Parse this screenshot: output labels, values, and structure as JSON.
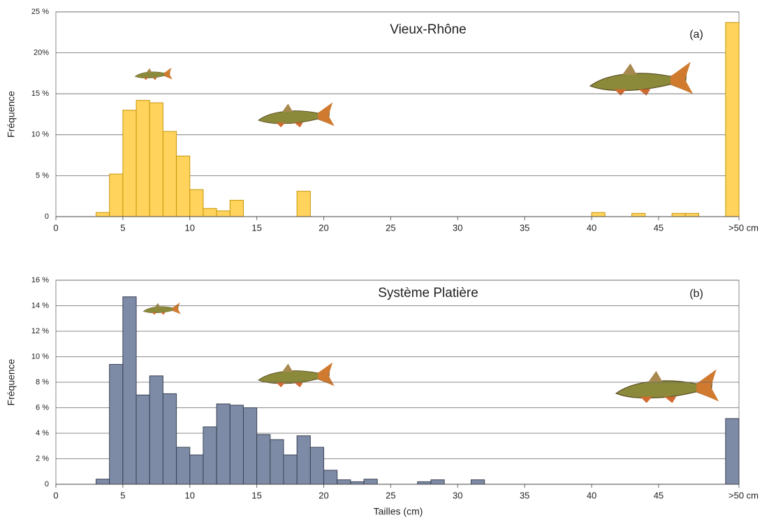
{
  "chart_data": [
    {
      "type": "histogram",
      "title": "Vieux-Rhône",
      "annotation": "(a)",
      "ylabel": "Fréquence",
      "bins": [
        3,
        4,
        5,
        6,
        7,
        8,
        9,
        10,
        11,
        12,
        13,
        14,
        15,
        16,
        17,
        18,
        19,
        20,
        21,
        22,
        23,
        24,
        25,
        26,
        27,
        28,
        29,
        30,
        31,
        32,
        33,
        34,
        35,
        36,
        37,
        38,
        39,
        40,
        41,
        42,
        43,
        44,
        45,
        46,
        47,
        48,
        49,
        50,
        51
      ],
      "values": [
        0.5,
        5.2,
        13,
        14.2,
        13.9,
        10.4,
        7.4,
        3.3,
        1,
        0.7,
        2,
        0,
        0,
        0,
        0,
        3.1,
        0,
        0,
        0,
        0,
        0,
        0,
        0,
        0,
        0,
        0,
        0,
        0,
        0,
        0,
        0,
        0,
        0,
        0,
        0,
        0,
        0,
        0.5,
        0,
        0,
        0.4,
        0,
        0,
        0.4,
        0.4,
        0,
        0,
        23.7
      ],
      "color": "#ffd35c",
      "edge_color": "#c8960a",
      "xlim": [
        0,
        51
      ],
      "xticks": [
        0,
        5,
        10,
        15,
        20,
        25,
        30,
        35,
        40,
        45,
        {
          "value": 51,
          "label": ">50 cm"
        }
      ],
      "ylim": [
        0,
        25
      ],
      "yticks": [
        0,
        {
          "value": 5,
          "label": "5 %"
        },
        {
          "value": 10,
          "label": "10 %"
        },
        {
          "value": 15,
          "label": "15 %"
        },
        {
          "value": 20,
          "label": "20%"
        },
        {
          "value": 25,
          "label": "25 %"
        }
      ],
      "grid": true
    },
    {
      "type": "histogram",
      "title": "Système Platière",
      "annotation": "(b)",
      "ylabel": "Fréquence",
      "xlabel": "Tailles (cm)",
      "bins": [
        3,
        4,
        5,
        6,
        7,
        8,
        9,
        10,
        11,
        12,
        13,
        14,
        15,
        16,
        17,
        18,
        19,
        20,
        21,
        22,
        23,
        24,
        25,
        26,
        27,
        28,
        29,
        30,
        31,
        32,
        33,
        34,
        35,
        36,
        37,
        38,
        39,
        40,
        41,
        42,
        43,
        44,
        45,
        46,
        47,
        48,
        49,
        50,
        51
      ],
      "values": [
        0.4,
        9.4,
        14.7,
        7,
        8.5,
        7.1,
        2.9,
        2.3,
        4.5,
        6.3,
        6.2,
        6,
        3.9,
        3.5,
        2.3,
        3.8,
        2.9,
        1.1,
        0.35,
        0.2,
        0.4,
        0,
        0,
        0,
        0.2,
        0.35,
        0,
        0,
        0.35,
        0,
        0,
        0,
        0,
        0,
        0,
        0,
        0,
        0,
        0,
        0,
        0,
        0,
        0,
        0,
        0,
        0,
        0,
        5.15
      ],
      "color": "#7d8ba6",
      "edge_color": "#3a4356",
      "xlim": [
        0,
        51
      ],
      "xticks": [
        0,
        5,
        10,
        15,
        20,
        25,
        30,
        35,
        40,
        45,
        {
          "value": 51,
          "label": ">50 cm"
        }
      ],
      "ylim": [
        0,
        16
      ],
      "yticks": [
        0,
        {
          "value": 2,
          "label": "2 %"
        },
        {
          "value": 4,
          "label": "4 %"
        },
        {
          "value": 6,
          "label": "6 %"
        },
        {
          "value": 8,
          "label": "8 %"
        },
        {
          "value": 10,
          "label": "10 %"
        },
        {
          "value": 12,
          "label": "12 %"
        },
        {
          "value": 14,
          "label": "14 %"
        },
        {
          "value": 16,
          "label": "16 %"
        }
      ],
      "grid": true
    }
  ]
}
